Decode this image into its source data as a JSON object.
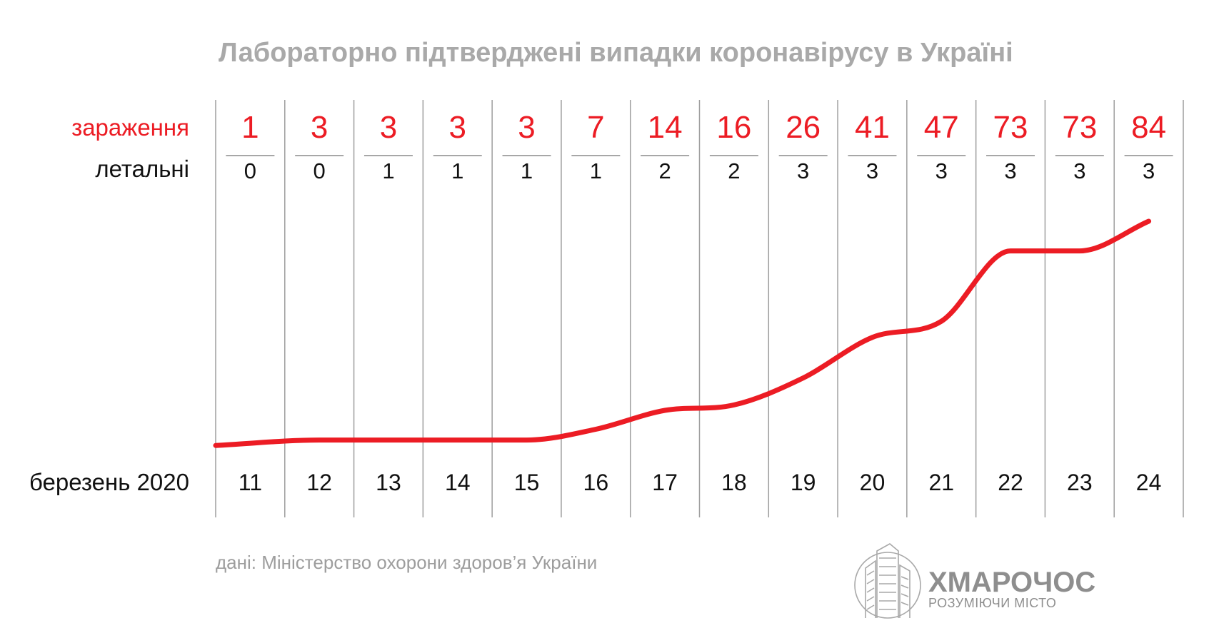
{
  "title": "Лабораторно підтверджені випадки коронавірусу в Україні",
  "row_labels": {
    "cases": "зараження",
    "deaths": "летальні",
    "dates": "березень 2020"
  },
  "source": "дані: Міністерство охорони здоров’я України",
  "brand": {
    "name": "ХМАРОЧОС",
    "tagline": "РОЗУМІЮЧИ МІСТО"
  },
  "colors": {
    "accent": "#ec1c24",
    "title": "#a9a9a9",
    "grid": "#9e9e9e"
  },
  "chart_data": {
    "type": "line",
    "categories": [
      "11",
      "12",
      "13",
      "14",
      "15",
      "16",
      "17",
      "18",
      "19",
      "20",
      "21",
      "22",
      "23",
      "24"
    ],
    "series": [
      {
        "name": "зараження",
        "values": [
          1,
          3,
          3,
          3,
          3,
          7,
          14,
          16,
          26,
          41,
          47,
          73,
          73,
          84
        ]
      },
      {
        "name": "летальні",
        "values": [
          0,
          0,
          1,
          1,
          1,
          1,
          2,
          2,
          3,
          3,
          3,
          3,
          3,
          3
        ]
      }
    ],
    "title": "Лабораторно підтверджені випадки коронавірусу в Україні",
    "xlabel": "березень 2020",
    "ylabel": "",
    "grid": "vertical",
    "legend": "left"
  }
}
